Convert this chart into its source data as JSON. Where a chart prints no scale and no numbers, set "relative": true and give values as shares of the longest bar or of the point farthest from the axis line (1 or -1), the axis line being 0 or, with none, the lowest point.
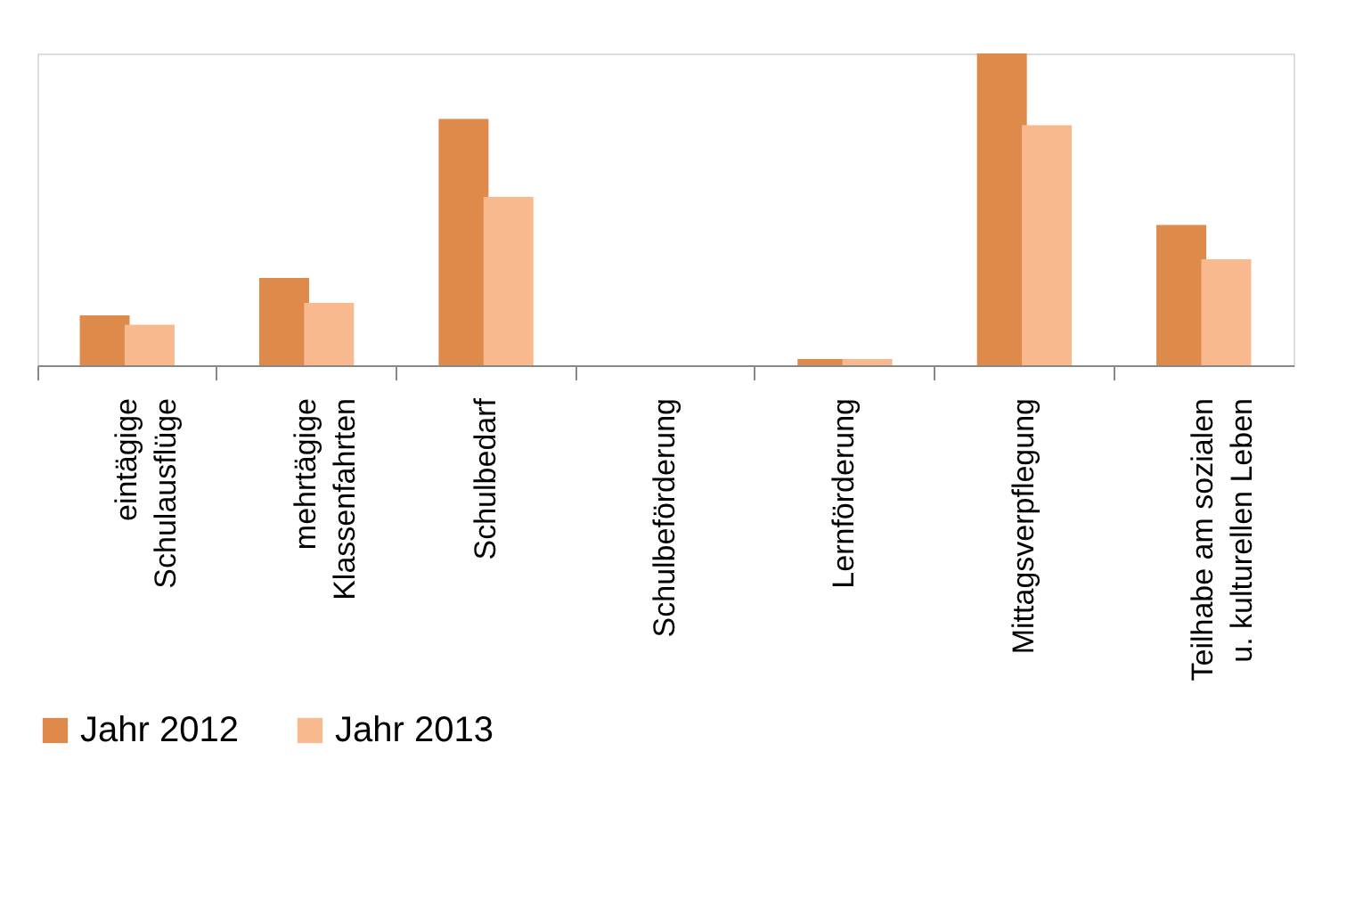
{
  "chart_data": {
    "type": "bar",
    "relative": true,
    "legend": "bottom",
    "categories": [
      "eintägige\nSchulausflüge",
      "mehrtägige\nKlassenfahrten",
      "Schulbedarf",
      "Schulbeförderung",
      "Lernförderung",
      "Mittagsverpflegung",
      "Teilhabe am sozialen\nu. kulturellen Leben"
    ],
    "series": [
      {
        "name": "Jahr 2012",
        "color": "#de8a4a",
        "values": [
          0.16,
          0.28,
          0.79,
          0,
          0.02,
          1,
          0.45
        ]
      },
      {
        "name": "Jahr 2013",
        "color": "#f9b98f",
        "values": [
          0.13,
          0.2,
          0.54,
          0,
          0.02,
          0.77,
          0.34
        ]
      }
    ]
  }
}
